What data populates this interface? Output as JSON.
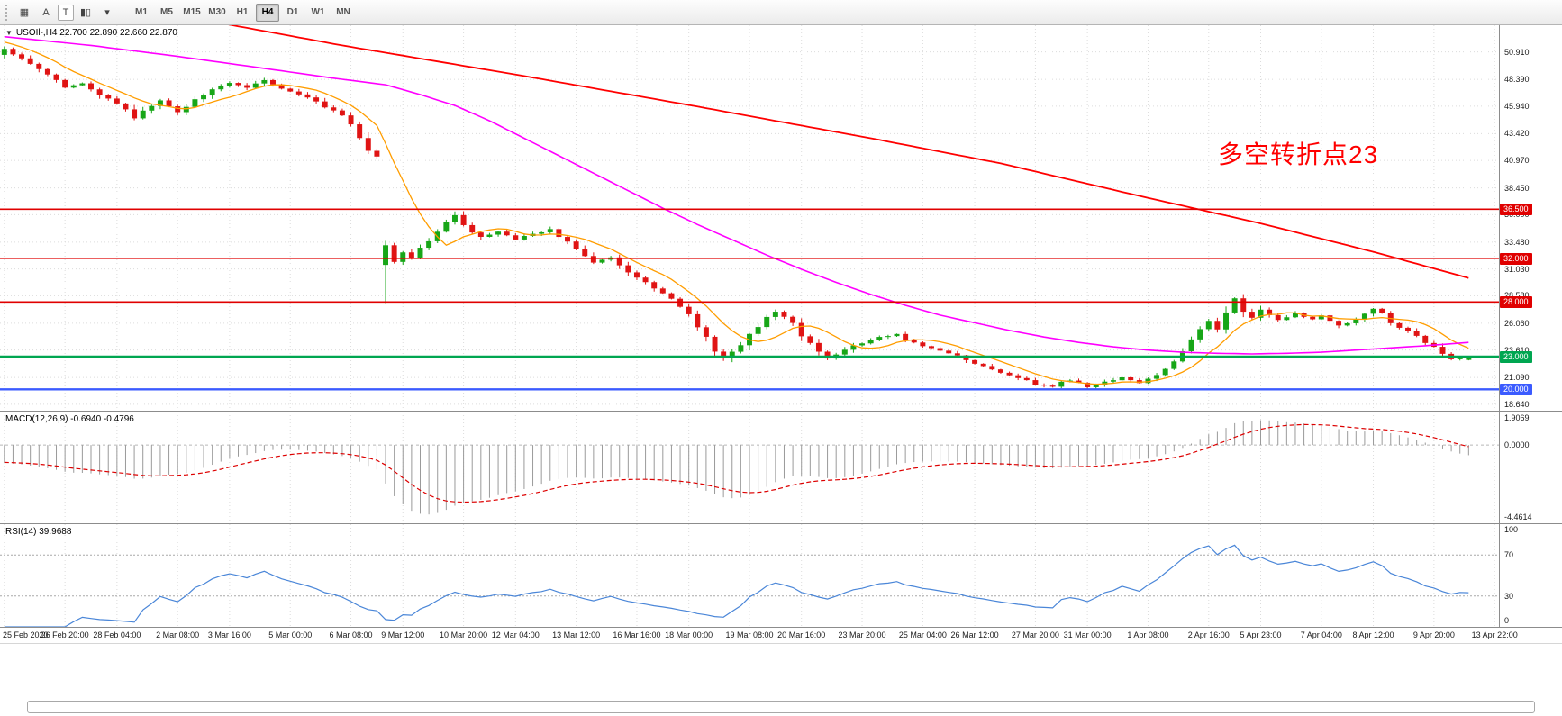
{
  "toolbar": {
    "icons": [
      {
        "name": "chart-window-icon",
        "glyph": "▦"
      },
      {
        "name": "cursor-icon",
        "glyph": "A"
      },
      {
        "name": "text-tool-icon",
        "glyph": "T",
        "boxed": true
      },
      {
        "name": "chart-type-icon",
        "glyph": "▮▯"
      },
      {
        "name": "dropdown-caret-icon",
        "glyph": "▾"
      }
    ],
    "timeframes": [
      "M1",
      "M5",
      "M15",
      "M30",
      "H1",
      "H4",
      "D1",
      "W1",
      "MN"
    ],
    "active_timeframe": "H4"
  },
  "chart": {
    "collapse_icon": "▼",
    "title": "USOIl-,H4 22.700 22.890 22.660 22.870",
    "annotation": {
      "text": "多空转折点23",
      "color": "#ff0000"
    }
  },
  "colors": {
    "bull": "#17a617",
    "bear": "#e01414",
    "ma_fast": "#ff9d00",
    "ma_mid": "#ff00ff",
    "ma_slow": "#ff0000",
    "macd_hist": "#9a9a9a",
    "macd_signal": "#dd0000",
    "rsi_line": "#4a86d8",
    "grid": "#dcdcdc"
  },
  "chart_data": {
    "type": "candlestick+indicators",
    "symbol": "USOIl-",
    "timeframe": "H4",
    "ohlc_current": {
      "open": 22.7,
      "high": 22.89,
      "low": 22.66,
      "close": 22.87
    },
    "price_axis": {
      "ylim": [
        18.05,
        53.35
      ],
      "ticks": [
        "50.910",
        "48.390",
        "45.940",
        "43.420",
        "40.970",
        "38.450",
        "36.000",
        "33.480",
        "31.030",
        "28.580",
        "26.060",
        "23.610",
        "21.090",
        "18.640"
      ]
    },
    "levels": [
      {
        "price": 36.5,
        "label": "36.500",
        "color": "#e00000",
        "line_width": 1.6
      },
      {
        "price": 32.0,
        "label": "32.000",
        "color": "#e00000",
        "line_width": 1.6
      },
      {
        "price": 28.0,
        "label": "28.000",
        "color": "#e00000",
        "line_width": 1.6
      },
      {
        "price": 23.0,
        "label": "23.000",
        "color": "#00a651",
        "line_width": 2.4
      },
      {
        "price": 20.0,
        "label": "20.000",
        "color": "#3b5bff",
        "line_width": 2.4
      }
    ],
    "candle_count": 170,
    "close_anchors": [
      [
        0,
        51.1
      ],
      [
        2,
        50.3
      ],
      [
        4,
        49.4
      ],
      [
        6,
        48.3
      ],
      [
        7,
        47.6
      ],
      [
        9,
        48.0
      ],
      [
        11,
        47.0
      ],
      [
        13,
        46.2
      ],
      [
        15,
        44.9
      ],
      [
        16,
        45.6
      ],
      [
        18,
        46.4
      ],
      [
        20,
        45.3
      ],
      [
        22,
        46.5
      ],
      [
        24,
        47.4
      ],
      [
        26,
        48.1
      ],
      [
        28,
        47.7
      ],
      [
        30,
        48.3
      ],
      [
        33,
        47.2
      ],
      [
        35,
        46.8
      ],
      [
        37,
        45.9
      ],
      [
        39,
        45.1
      ],
      [
        40,
        44.2
      ],
      [
        41,
        43.0
      ],
      [
        42,
        41.9
      ],
      [
        43,
        41.3
      ],
      [
        44,
        33.2
      ],
      [
        45,
        31.7
      ],
      [
        46,
        32.6
      ],
      [
        47,
        31.9
      ],
      [
        48,
        33.0
      ],
      [
        49,
        33.6
      ],
      [
        50,
        34.5
      ],
      [
        51,
        35.3
      ],
      [
        52,
        36.0
      ],
      [
        53,
        35.1
      ],
      [
        54,
        34.3
      ],
      [
        55,
        33.9
      ],
      [
        57,
        34.4
      ],
      [
        59,
        33.7
      ],
      [
        61,
        34.3
      ],
      [
        63,
        34.6
      ],
      [
        65,
        33.5
      ],
      [
        66,
        32.8
      ],
      [
        68,
        31.6
      ],
      [
        70,
        32.1
      ],
      [
        72,
        30.8
      ],
      [
        73,
        30.3
      ],
      [
        75,
        29.2
      ],
      [
        77,
        28.3
      ],
      [
        79,
        26.8
      ],
      [
        81,
        24.8
      ],
      [
        82,
        23.5
      ],
      [
        83,
        22.9
      ],
      [
        85,
        24.0
      ],
      [
        86,
        25.0
      ],
      [
        88,
        26.6
      ],
      [
        89,
        27.2
      ],
      [
        91,
        26.0
      ],
      [
        92,
        24.9
      ],
      [
        94,
        23.4
      ],
      [
        95,
        22.8
      ],
      [
        97,
        23.7
      ],
      [
        99,
        24.2
      ],
      [
        101,
        24.7
      ],
      [
        103,
        25.0
      ],
      [
        105,
        24.3
      ],
      [
        106,
        24.0
      ],
      [
        108,
        23.5
      ],
      [
        110,
        23.1
      ],
      [
        112,
        22.4
      ],
      [
        114,
        21.8
      ],
      [
        116,
        21.2
      ],
      [
        118,
        20.8
      ],
      [
        119,
        20.5
      ],
      [
        121,
        20.3
      ],
      [
        123,
        20.9
      ],
      [
        125,
        20.2
      ],
      [
        127,
        20.7
      ],
      [
        129,
        21.0
      ],
      [
        131,
        20.6
      ],
      [
        132,
        20.9
      ],
      [
        134,
        21.8
      ],
      [
        136,
        23.5
      ],
      [
        138,
        25.6
      ],
      [
        139,
        26.3
      ],
      [
        140,
        25.4
      ],
      [
        141,
        27.0
      ],
      [
        142,
        28.4
      ],
      [
        143,
        27.2
      ],
      [
        144,
        26.5
      ],
      [
        145,
        27.3
      ],
      [
        147,
        26.3
      ],
      [
        149,
        27.0
      ],
      [
        151,
        26.4
      ],
      [
        152,
        26.7
      ],
      [
        154,
        25.9
      ],
      [
        156,
        26.4
      ],
      [
        158,
        27.4
      ],
      [
        159,
        26.9
      ],
      [
        160,
        26.0
      ],
      [
        162,
        25.3
      ],
      [
        164,
        24.3
      ],
      [
        165,
        23.8
      ],
      [
        166,
        23.2
      ],
      [
        167,
        22.8
      ],
      [
        168,
        23.0
      ],
      [
        169,
        22.87
      ]
    ],
    "special_candles": {
      "44": {
        "o": 31.4,
        "h": 33.6,
        "l": 27.9,
        "c": 33.2
      },
      "169": {
        "o": 22.7,
        "h": 22.89,
        "l": 22.66,
        "c": 22.87
      }
    },
    "history_seed": {
      "count": 40,
      "slope": 0.16
    },
    "moving_averages": [
      {
        "name": "fast-ma",
        "type": "sma",
        "period": 8,
        "color": "#ff9d00",
        "width": 1.3
      },
      {
        "name": "medium-ma",
        "type": "points",
        "color": "#ff00ff",
        "width": 1.6,
        "points": [
          [
            0,
            52.3
          ],
          [
            10,
            51.5
          ],
          [
            20,
            50.5
          ],
          [
            30,
            49.4
          ],
          [
            38,
            48.5
          ],
          [
            44,
            47.9
          ],
          [
            48,
            47.0
          ],
          [
            52,
            46.0
          ],
          [
            56,
            44.6
          ],
          [
            60,
            43.0
          ],
          [
            64,
            41.4
          ],
          [
            68,
            39.8
          ],
          [
            72,
            38.2
          ],
          [
            76,
            36.6
          ],
          [
            80,
            35.1
          ],
          [
            84,
            33.7
          ],
          [
            88,
            32.3
          ],
          [
            92,
            31.0
          ],
          [
            96,
            29.8
          ],
          [
            100,
            28.7
          ],
          [
            104,
            27.7
          ],
          [
            108,
            26.8
          ],
          [
            112,
            26.1
          ],
          [
            116,
            25.4
          ],
          [
            120,
            24.8
          ],
          [
            124,
            24.3
          ],
          [
            128,
            23.9
          ],
          [
            132,
            23.6
          ],
          [
            136,
            23.4
          ],
          [
            140,
            23.3
          ],
          [
            144,
            23.25
          ],
          [
            148,
            23.3
          ],
          [
            152,
            23.4
          ],
          [
            156,
            23.6
          ],
          [
            160,
            23.8
          ],
          [
            164,
            24.0
          ],
          [
            169,
            24.3
          ]
        ]
      },
      {
        "name": "slow-ma",
        "type": "points",
        "color": "#ff0000",
        "width": 1.8,
        "points": [
          [
            0,
            57.2
          ],
          [
            39,
            51.5
          ],
          [
            60,
            48.7
          ],
          [
            80,
            45.9
          ],
          [
            100,
            43.0
          ],
          [
            115,
            40.7
          ],
          [
            130,
            37.9
          ],
          [
            145,
            35.2
          ],
          [
            158,
            32.6
          ],
          [
            169,
            30.2
          ]
        ]
      }
    ],
    "macd": {
      "label": "MACD(12,26,9) -0.6940 -0.4796",
      "fast": 12,
      "slow": 26,
      "signal": 9,
      "current_values": [
        "-0.6940",
        "-0.4796"
      ],
      "axis_max": 1.9069,
      "axis_min": -4.4614,
      "axis_labels": [
        {
          "value": 1.9069,
          "text": "1.9069"
        },
        {
          "value": 0,
          "text": "0.0000"
        },
        {
          "value": -4.4614,
          "text": "-4.4614"
        }
      ]
    },
    "rsi": {
      "label": "RSI(14) 39.9688",
      "period": 14,
      "current_value": "39.9688",
      "levels": [
        70,
        30
      ],
      "axis_labels": [
        {
          "value": 100,
          "text": "100"
        },
        {
          "value": 70,
          "text": "70"
        },
        {
          "value": 30,
          "text": "30"
        },
        {
          "value": 0,
          "text": "0"
        }
      ]
    },
    "time_labels": [
      {
        "idx": 0,
        "text": "25 Feb 2020"
      },
      {
        "idx": 7,
        "text": "26 Feb 20:00"
      },
      {
        "idx": 13,
        "text": "28 Feb 04:00"
      },
      {
        "idx": 20,
        "text": "2 Mar 08:00"
      },
      {
        "idx": 26,
        "text": "3 Mar 16:00"
      },
      {
        "idx": 33,
        "text": "5 Mar 00:00"
      },
      {
        "idx": 40,
        "text": "6 Mar 08:00"
      },
      {
        "idx": 46,
        "text": "9 Mar 12:00"
      },
      {
        "idx": 53,
        "text": "10 Mar 20:00"
      },
      {
        "idx": 59,
        "text": "12 Mar 04:00"
      },
      {
        "idx": 66,
        "text": "13 Mar 12:00"
      },
      {
        "idx": 73,
        "text": "16 Mar 16:00"
      },
      {
        "idx": 79,
        "text": "18 Mar 00:00"
      },
      {
        "idx": 86,
        "text": "19 Mar 08:00"
      },
      {
        "idx": 92,
        "text": "20 Mar 16:00"
      },
      {
        "idx": 99,
        "text": "23 Mar 20:00"
      },
      {
        "idx": 106,
        "text": "25 Mar 04:00"
      },
      {
        "idx": 112,
        "text": "26 Mar 12:00"
      },
      {
        "idx": 119,
        "text": "27 Mar 20:00"
      },
      {
        "idx": 125,
        "text": "31 Mar 00:00"
      },
      {
        "idx": 132,
        "text": "1 Apr 08:00"
      },
      {
        "idx": 139,
        "text": "2 Apr 16:00"
      },
      {
        "idx": 145,
        "text": "5 Apr 23:00"
      },
      {
        "idx": 152,
        "text": "7 Apr 04:00"
      },
      {
        "idx": 158,
        "text": "8 Apr 12:00"
      },
      {
        "idx": 165,
        "text": "9 Apr 20:00"
      },
      {
        "idx": 172,
        "text": "13 Apr 22:00"
      }
    ]
  }
}
